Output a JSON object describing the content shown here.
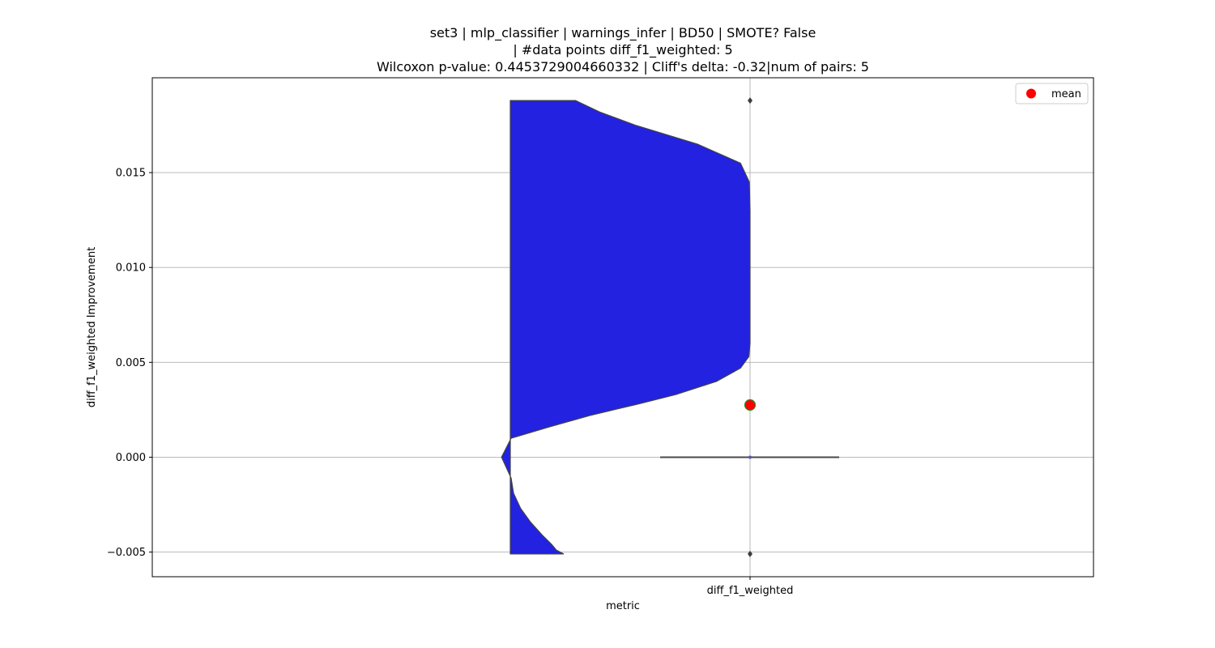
{
  "chart_data": {
    "type": "violin",
    "title_lines": [
      "set3 | mlp_classifier | warnings_infer | BD50 | SMOTE? False",
      "| #data points diff_f1_weighted: 5",
      "Wilcoxon p-value: 0.4453729004660332 | Cliff's delta: -0.32|num of pairs: 5"
    ],
    "xlabel": "metric",
    "ylabel": "diff_f1_weighted Improvement",
    "categories": [
      "diff_f1_weighted"
    ],
    "ylim": [
      -0.0063,
      0.02
    ],
    "yticks": [
      -0.005,
      0.0,
      0.005,
      0.01,
      0.015
    ],
    "ytick_labels": [
      "−0.005",
      "0.000",
      "0.005",
      "0.010",
      "0.015"
    ],
    "grid": true,
    "violin": {
      "color": "#0000e6",
      "y_min": -0.0051,
      "y_max": 0.0188,
      "density_profile": [
        [
          -0.0051,
          0.78
        ],
        [
          -0.0049,
          0.81
        ],
        [
          -0.0046,
          0.83
        ],
        [
          -0.0041,
          0.87
        ],
        [
          -0.0034,
          0.92
        ],
        [
          -0.0027,
          0.96
        ],
        [
          -0.0019,
          0.99
        ],
        [
          -0.0011,
          1.0
        ],
        [
          0.0,
          1.04
        ],
        [
          0.001,
          1.0
        ],
        [
          0.0016,
          0.84
        ],
        [
          0.0022,
          0.67
        ],
        [
          0.0028,
          0.47
        ],
        [
          0.0033,
          0.31
        ],
        [
          0.004,
          0.14
        ],
        [
          0.0047,
          0.04
        ],
        [
          0.0053,
          0.005
        ],
        [
          0.006,
          0.0
        ],
        [
          0.008,
          0.0
        ],
        [
          0.011,
          0.0
        ],
        [
          0.013,
          0.0
        ],
        [
          0.0145,
          0.003
        ],
        [
          0.0155,
          0.04
        ],
        [
          0.0165,
          0.22
        ],
        [
          0.0175,
          0.48
        ],
        [
          0.0182,
          0.63
        ],
        [
          0.0188,
          0.73
        ]
      ]
    },
    "box": {
      "median": 0.0,
      "q1": 0.0,
      "q3": 0.0,
      "whisker_low": 0.0,
      "whisker_high": 0.0,
      "outliers": [
        0.0188,
        -0.0051
      ],
      "color": "#4a4a4a"
    },
    "mean": 0.00275,
    "mean_color": "#ff0000",
    "mean_edge_color": "#2e8b2e",
    "legend": {
      "label": "mean",
      "placement": "top-right"
    }
  }
}
